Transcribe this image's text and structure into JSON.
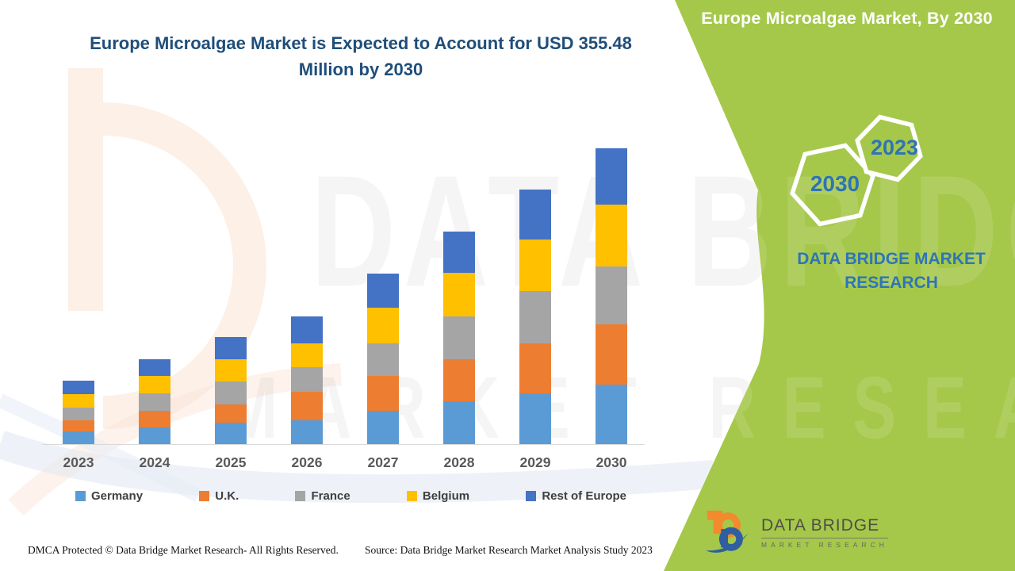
{
  "page": {
    "background": "#FFFFFF",
    "accent_green": "#A5C84B"
  },
  "header": {
    "title": "Europe Microalgae Market  is Expected to Account for USD 355.48 Million by 2030",
    "color": "#1F4E79"
  },
  "watermark": {
    "line_top": "DATA BRIDGE",
    "line_bottom": "MARKET RESEARCH"
  },
  "side_panel": {
    "title": "Europe Microalgae Market, By 2030",
    "hexagons": [
      {
        "label": "2023"
      },
      {
        "label": "2030"
      }
    ],
    "brand_text": "DATA BRIDGE MARKET RESEARCH",
    "text_color": "#2E75B6"
  },
  "logo": {
    "line1": "DATA BRIDGE",
    "line2": "MARKET RESEARCH",
    "orange": "#F28A2E",
    "blue": "#2F5FA0"
  },
  "footer": {
    "dmca": "DMCA Protected © Data Bridge Market Research- All Rights Reserved.",
    "source": "Source: Data Bridge Market Research Market Analysis Study 2023"
  },
  "chart_data": {
    "type": "bar",
    "stacked": true,
    "title": "Europe Microalgae Market is Expected to Account for USD 355.48 Million by 2030",
    "unit": "USD Million",
    "categories": [
      "2023",
      "2024",
      "2025",
      "2026",
      "2027",
      "2028",
      "2029",
      "2030"
    ],
    "series": [
      {
        "name": "Germany",
        "color": "#5B9BD5",
        "values": [
          15.3,
          20.0,
          25.7,
          28.6,
          40.0,
          51.5,
          61.0,
          71.5
        ]
      },
      {
        "name": "U.K.",
        "color": "#ED7D31",
        "values": [
          13.3,
          20.0,
          21.9,
          34.3,
          41.9,
          50.5,
          60.5,
          72.5
        ]
      },
      {
        "name": "France",
        "color": "#A5A5A5",
        "values": [
          15.3,
          21.0,
          27.6,
          29.5,
          39.1,
          51.5,
          62.5,
          69.6
        ]
      },
      {
        "name": "Belgium",
        "color": "#FFC000",
        "values": [
          16.2,
          21.0,
          26.7,
          28.6,
          42.9,
          52.4,
          61.9,
          74.4
        ]
      },
      {
        "name": "Rest of Europe",
        "color": "#4472C4",
        "values": [
          16.2,
          20.0,
          26.7,
          32.4,
          41.0,
          49.6,
          60.0,
          67.5
        ]
      }
    ],
    "xlabel": "",
    "ylabel": "",
    "ylim": [
      0,
      380
    ],
    "grid": false,
    "legend_position": "bottom"
  }
}
